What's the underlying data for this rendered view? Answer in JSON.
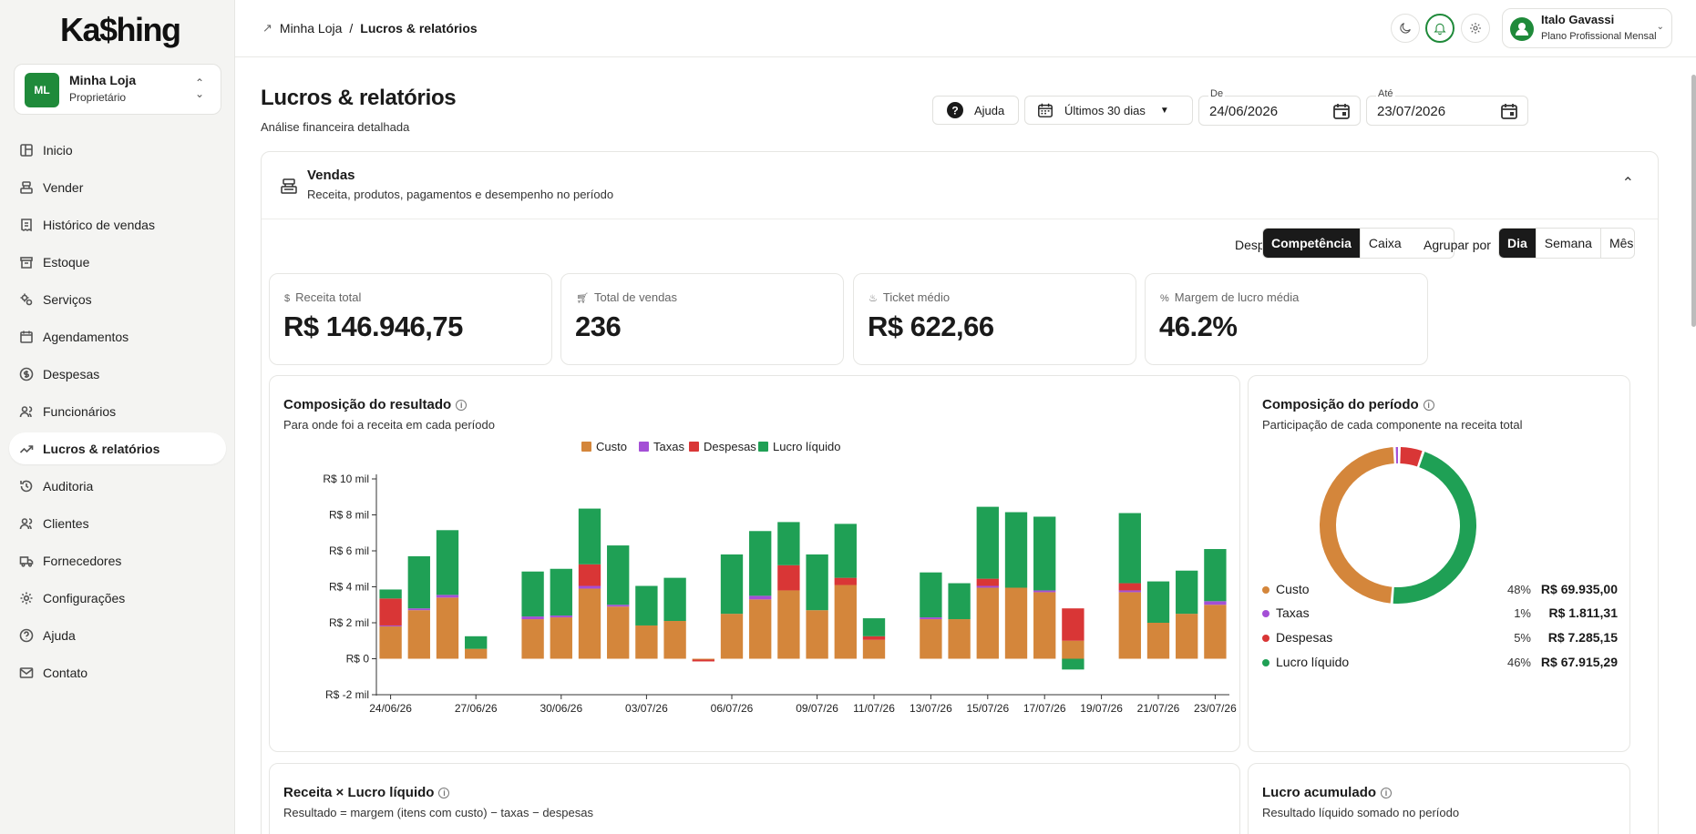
{
  "app": {
    "logo": "Ka$hing"
  },
  "store": {
    "initials": "ML",
    "name": "Minha Loja",
    "role": "Proprietário"
  },
  "nav": [
    {
      "label": "Inicio",
      "icon": "dashboard-icon"
    },
    {
      "label": "Vender",
      "icon": "register-icon"
    },
    {
      "label": "Histórico de vendas",
      "icon": "receipt-icon"
    },
    {
      "label": "Estoque",
      "icon": "archive-icon"
    },
    {
      "label": "Serviços",
      "icon": "gears-icon"
    },
    {
      "label": "Agendamentos",
      "icon": "calendar-icon"
    },
    {
      "label": "Despesas",
      "icon": "dollar-circle-icon"
    },
    {
      "label": "Funcionários",
      "icon": "users-icon"
    },
    {
      "label": "Lucros & relatórios",
      "icon": "trend-icon",
      "active": true
    },
    {
      "label": "Auditoria",
      "icon": "history-icon"
    },
    {
      "label": "Clientes",
      "icon": "clients-icon"
    },
    {
      "label": "Fornecedores",
      "icon": "truck-icon"
    },
    {
      "label": "Configurações",
      "icon": "gear-icon"
    },
    {
      "label": "Ajuda",
      "icon": "help-icon"
    },
    {
      "label": "Contato",
      "icon": "mail-icon"
    }
  ],
  "breadcrumb": {
    "root": "Minha Loja",
    "sep": "/",
    "current": "Lucros & relatórios"
  },
  "user": {
    "name": "Italo Gavassi",
    "plan": "Plano Profissional Mensal"
  },
  "page": {
    "title": "Lucros & relatórios",
    "subtitle": "Análise financeira detalhada"
  },
  "controls": {
    "help": "Ajuda",
    "range": "Últimos 30 dias",
    "from_label": "De",
    "from_value": "24/06/2026",
    "to_label": "Até",
    "to_value": "23/07/2026"
  },
  "section": {
    "title": "Vendas",
    "subtitle": "Receita, produtos, pagamentos e desempenho no período"
  },
  "filters": {
    "expenses_label": "Despesas por",
    "expenses_options": [
      "Competência",
      "Caixa"
    ],
    "expenses_selected": "Competência",
    "group_label": "Agrupar por",
    "group_options": [
      "Dia",
      "Semana",
      "Mês"
    ],
    "group_selected": "Dia"
  },
  "kpis": [
    {
      "icon": "dollar-icon",
      "label": "Receita total",
      "value": "R$ 146.946,75"
    },
    {
      "icon": "cart-icon",
      "label": "Total de vendas",
      "value": "236"
    },
    {
      "icon": "flame-icon",
      "label": "Ticket médio",
      "value": "R$ 622,66"
    },
    {
      "icon": "percent-icon",
      "label": "Margem de lucro média",
      "value": "46.2%"
    }
  ],
  "composition_card": {
    "title": "Composição do resultado",
    "subtitle": "Para onde foi a receita em cada período"
  },
  "period_card": {
    "title": "Composição do período",
    "subtitle": "Participação de cada componente na receita total"
  },
  "revenue_card": {
    "title": "Receita × Lucro líquido",
    "subtitle": "Resultado = margem (itens com custo) − taxas − despesas"
  },
  "accum_card": {
    "title": "Lucro acumulado",
    "subtitle": "Resultado líquido somado no período"
  },
  "colors": {
    "custo": "#d4863b",
    "taxas": "#a44fd6",
    "despesas": "#d93636",
    "lucro": "#1fa055",
    "accent": "#1f8a3a"
  },
  "chart_data": [
    {
      "type": "bar",
      "stacked": true,
      "categories": [
        "24/06",
        "25/06",
        "26/06",
        "27/06",
        "28/06",
        "29/06",
        "30/06",
        "01/07",
        "02/07",
        "03/07",
        "04/07",
        "05/07",
        "06/07",
        "07/07",
        "08/07",
        "09/07",
        "10/07",
        "11/07",
        "12/07",
        "13/07",
        "14/07",
        "15/07",
        "16/07",
        "17/07",
        "18/07",
        "19/07",
        "20/07",
        "21/07",
        "22/07",
        "23/07"
      ],
      "x_tick_labels": [
        "24/06/26",
        "27/06/26",
        "30/06/26",
        "03/07/26",
        "06/07/26",
        "09/07/26",
        "11/07/26",
        "13/07/26",
        "15/07/26",
        "17/07/26",
        "19/07/26",
        "21/07/26",
        "23/07/26"
      ],
      "x_tick_index": [
        0,
        3,
        6,
        9,
        12,
        15,
        17,
        19,
        21,
        23,
        25,
        27,
        29
      ],
      "series": [
        {
          "name": "Custo",
          "color": "#d4863b",
          "values": [
            1800,
            2700,
            3400,
            550,
            0,
            2200,
            2300,
            3900,
            2900,
            1850,
            2100,
            -50,
            2500,
            3300,
            3800,
            2700,
            4100,
            1050,
            0,
            2200,
            2200,
            3950,
            3950,
            3700,
            1000,
            0,
            3700,
            2000,
            2500,
            3000
          ]
        },
        {
          "name": "Taxas",
          "color": "#a44fd6",
          "values": [
            50,
            100,
            150,
            0,
            0,
            150,
            100,
            150,
            100,
            0,
            0,
            0,
            0,
            200,
            0,
            0,
            0,
            0,
            0,
            100,
            0,
            100,
            0,
            100,
            0,
            0,
            100,
            0,
            0,
            200
          ]
        },
        {
          "name": "Despesas",
          "color": "#d93636",
          "values": [
            1500,
            0,
            0,
            0,
            0,
            0,
            0,
            1200,
            0,
            0,
            0,
            -100,
            0,
            0,
            1400,
            0,
            400,
            200,
            0,
            0,
            0,
            400,
            0,
            0,
            1800,
            0,
            400,
            0,
            0,
            0
          ]
        },
        {
          "name": "Lucro líquido",
          "color": "#1fa055",
          "values": [
            500,
            2900,
            3600,
            700,
            0,
            2500,
            2600,
            3100,
            3300,
            2200,
            2400,
            0,
            3300,
            3600,
            2400,
            3100,
            3000,
            1000,
            0,
            2500,
            2000,
            4000,
            4200,
            4100,
            -600,
            0,
            3900,
            2300,
            2400,
            2900
          ]
        }
      ],
      "y_ticks": [
        "R$ 10 mil",
        "R$ 8 mil",
        "R$ 6 mil",
        "R$ 4 mil",
        "R$ 2 mil",
        "R$ 0",
        "R$ -2 mil"
      ],
      "ylim": [
        -2000,
        10000
      ],
      "legend": "top"
    },
    {
      "type": "pie",
      "donut": true,
      "slices": [
        {
          "name": "Custo",
          "pct": "48%",
          "value": "R$ 69.935,00",
          "share": 48,
          "color": "#d4863b"
        },
        {
          "name": "Taxas",
          "pct": "1%",
          "value": "R$ 1.811,31",
          "share": 1,
          "color": "#a44fd6"
        },
        {
          "name": "Despesas",
          "pct": "5%",
          "value": "R$ 7.285,15",
          "share": 5,
          "color": "#d93636"
        },
        {
          "name": "Lucro líquido",
          "pct": "46%",
          "value": "R$ 67.915,29",
          "share": 46,
          "color": "#1fa055"
        }
      ]
    }
  ]
}
